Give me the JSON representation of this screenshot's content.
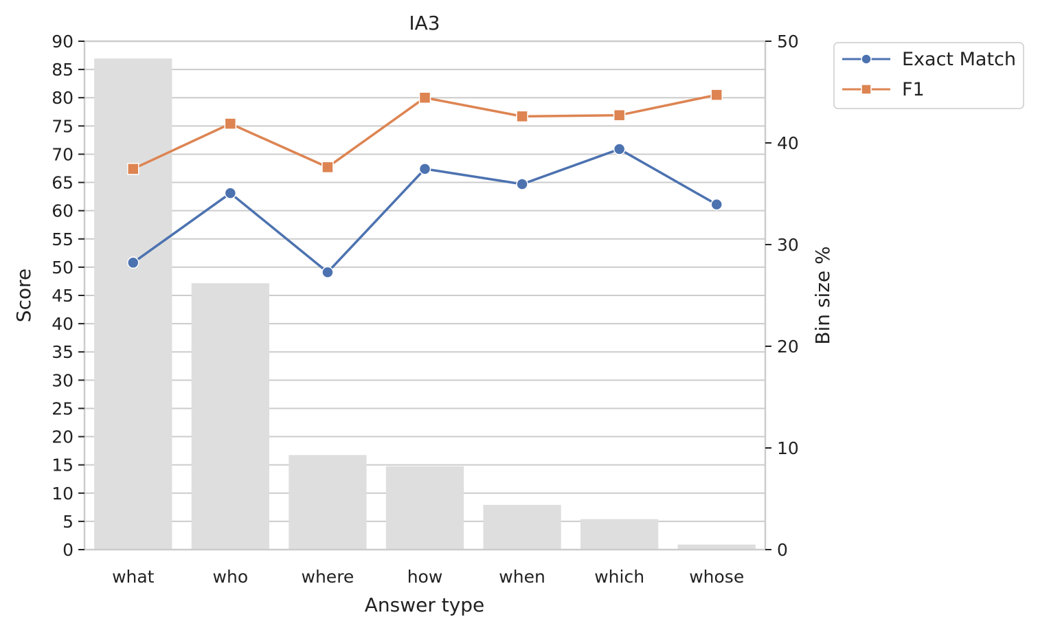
{
  "chart_data": {
    "type": "bar",
    "title": "IA3",
    "xlabel": "Answer type",
    "ylabel": "Score",
    "y2label": "Bin size %",
    "categories": [
      "what",
      "who",
      "where",
      "how",
      "when",
      "which",
      "whose"
    ],
    "ylim": [
      0,
      90
    ],
    "yticks": [
      0,
      5,
      10,
      15,
      20,
      25,
      30,
      35,
      40,
      45,
      50,
      55,
      60,
      65,
      70,
      75,
      80,
      85,
      90
    ],
    "y2lim": [
      0,
      50
    ],
    "y2ticks": [
      0,
      10,
      20,
      30,
      40,
      50
    ],
    "bars": {
      "name": "Bin size %",
      "axis": "right",
      "color": "#dedede",
      "values": [
        48.3,
        26.2,
        9.3,
        8.2,
        4.4,
        3.0,
        0.5
      ]
    },
    "series": [
      {
        "name": "Exact Match",
        "axis": "left",
        "color": "#4c72b0",
        "marker": "circle",
        "values": [
          50.8,
          63.1,
          49.1,
          67.4,
          64.7,
          70.9,
          61.1
        ]
      },
      {
        "name": "F1",
        "axis": "left",
        "color": "#dd8452",
        "marker": "square",
        "values": [
          67.4,
          75.4,
          67.7,
          80.0,
          76.7,
          76.9,
          80.5
        ]
      }
    ],
    "grid": true,
    "legend": "outside top-right"
  }
}
